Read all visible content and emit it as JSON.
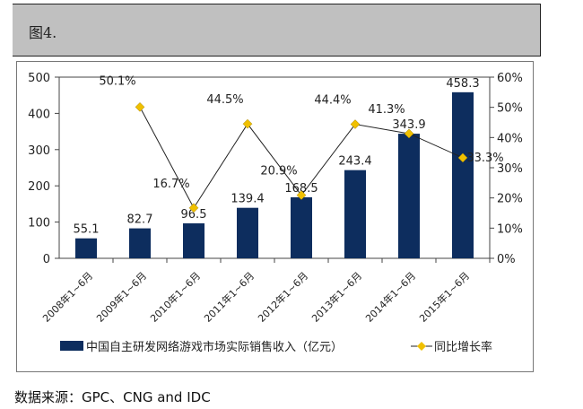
{
  "header": {
    "title": "图4."
  },
  "source": "数据来源：GPC、CNG and IDC",
  "chart_data": {
    "type": "bar+line",
    "categories": [
      "2008年1~6月",
      "2009年1~6月",
      "2010年1~6月",
      "2011年1~6月",
      "2012年1~6月",
      "2013年1~6月",
      "2014年1~6月",
      "2015年1~6月"
    ],
    "series": [
      {
        "name": "中国自主研发网络游戏市场实际销售收入（亿元）",
        "type": "bar",
        "axis": "left",
        "color": "#0d2d5e",
        "values": [
          55.1,
          82.7,
          96.5,
          139.4,
          168.5,
          243.4,
          343.9,
          458.3
        ],
        "labels": [
          "55.1",
          "82.7",
          "96.5",
          "139.4",
          "168.5",
          "243.4",
          "343.9",
          "458.3"
        ]
      },
      {
        "name": "同比增长率",
        "type": "line",
        "axis": "right",
        "color": "#f0c000",
        "values": [
          null,
          50.1,
          16.7,
          44.5,
          20.9,
          44.4,
          41.3,
          33.3
        ],
        "labels": [
          "",
          "50.1%",
          "16.7%",
          "44.5%",
          "20.9%",
          "44.4%",
          "41.3%",
          "33.3%"
        ]
      }
    ],
    "y_left": {
      "range": [
        0,
        500
      ],
      "ticks": [
        "0",
        "100",
        "200",
        "300",
        "400",
        "500"
      ]
    },
    "y_right": {
      "range": [
        0,
        60
      ],
      "ticks": [
        "0%",
        "10%",
        "20%",
        "30%",
        "40%",
        "50%",
        "60%"
      ]
    },
    "legend": "bottom",
    "grid": false
  }
}
